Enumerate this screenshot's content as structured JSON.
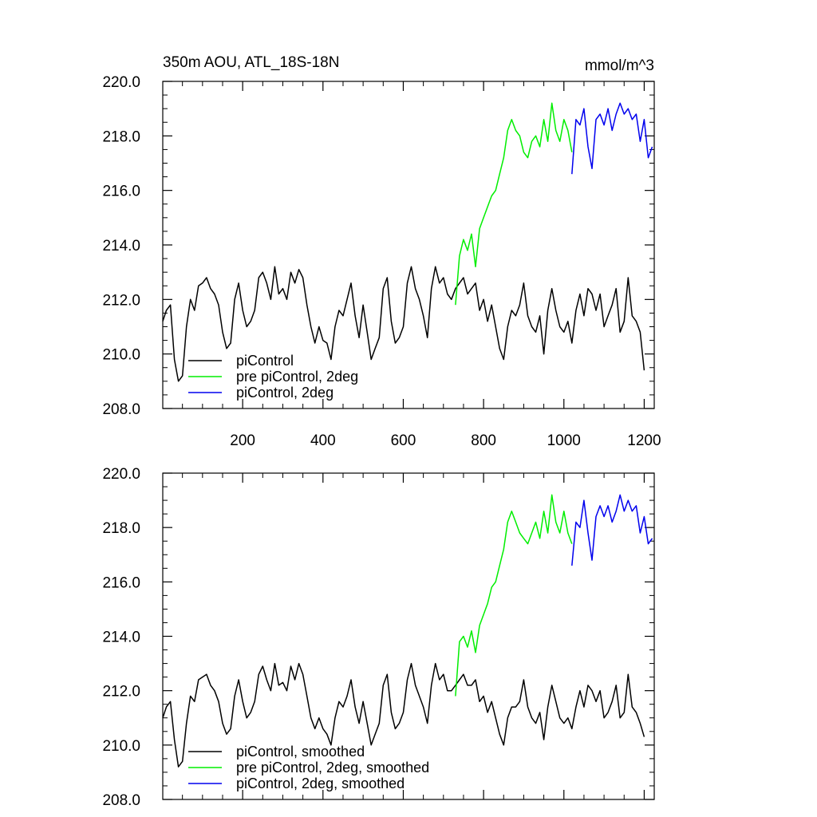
{
  "colors": {
    "black": "#000000",
    "green": "#00ee00",
    "blue": "#0000ee"
  },
  "chart_data": [
    {
      "type": "line",
      "title": "350m AOU, ATL_18S-18N",
      "units": "mmol/m^3",
      "xlim": [
        1,
        1225
      ],
      "ylim": [
        208,
        220
      ],
      "x_ticks": [
        200,
        400,
        600,
        800,
        1000,
        1200
      ],
      "x_tick_labels": [
        "200",
        "400",
        "600",
        "800",
        "1000",
        "1200"
      ],
      "y_ticks": [
        208,
        210,
        212,
        214,
        216,
        218,
        220
      ],
      "y_tick_labels": [
        "208.0",
        "210.0",
        "212.0",
        "214.0",
        "216.0",
        "218.0",
        "220.0"
      ],
      "legend": "bottom-left",
      "series": [
        {
          "name": "piControl",
          "color": "#000000",
          "x": [
            1,
            10,
            20,
            30,
            40,
            50,
            60,
            70,
            80,
            90,
            100,
            110,
            120,
            130,
            140,
            150,
            160,
            170,
            180,
            190,
            200,
            210,
            220,
            230,
            240,
            250,
            260,
            270,
            280,
            290,
            300,
            310,
            320,
            330,
            340,
            350,
            360,
            370,
            380,
            390,
            400,
            410,
            420,
            430,
            440,
            450,
            460,
            470,
            480,
            490,
            500,
            510,
            520,
            530,
            540,
            550,
            560,
            570,
            580,
            590,
            600,
            610,
            620,
            630,
            640,
            650,
            660,
            670,
            680,
            690,
            700,
            710,
            720,
            730,
            740,
            750,
            760,
            770,
            780,
            790,
            800,
            810,
            820,
            830,
            840,
            850,
            860,
            870,
            880,
            890,
            900,
            910,
            920,
            930,
            940,
            950,
            960,
            970,
            980,
            990,
            1000,
            1010,
            1020,
            1030,
            1040,
            1050,
            1060,
            1070,
            1080,
            1090,
            1100,
            1110,
            1120,
            1130,
            1140,
            1150,
            1160,
            1170,
            1180,
            1190,
            1200
          ],
          "values": [
            211.2,
            211.6,
            211.8,
            209.8,
            209.0,
            209.2,
            211.0,
            212.0,
            211.6,
            212.5,
            212.6,
            212.8,
            212.4,
            212.2,
            211.8,
            210.8,
            210.2,
            210.4,
            212.0,
            212.6,
            211.6,
            211.0,
            211.2,
            211.6,
            212.8,
            213.0,
            212.6,
            212.0,
            213.2,
            212.2,
            212.4,
            212.0,
            213.0,
            212.6,
            213.1,
            212.8,
            211.8,
            211.0,
            210.4,
            211.0,
            210.5,
            210.4,
            209.8,
            211.0,
            211.6,
            211.4,
            212.0,
            212.6,
            211.4,
            210.6,
            211.8,
            210.8,
            209.8,
            210.2,
            210.6,
            212.4,
            212.8,
            211.2,
            210.4,
            210.6,
            211.0,
            212.6,
            213.2,
            212.4,
            212.0,
            211.4,
            210.6,
            212.4,
            213.2,
            212.6,
            212.8,
            212.2,
            212.0,
            212.4,
            212.6,
            212.8,
            212.2,
            212.4,
            212.6,
            211.6,
            212.0,
            211.2,
            211.8,
            211.0,
            210.2,
            209.8,
            211.0,
            211.6,
            211.4,
            211.8,
            212.6,
            211.4,
            211.0,
            210.8,
            211.4,
            210.0,
            211.6,
            212.4,
            211.6,
            211.0,
            210.8,
            211.2,
            210.4,
            211.6,
            212.2,
            211.4,
            212.4,
            212.2,
            211.6,
            212.2,
            211.0,
            211.4,
            211.8,
            212.4,
            210.8,
            211.2,
            212.8,
            211.4,
            211.2,
            210.8,
            209.4
          ]
        },
        {
          "name": "pre piControl, 2deg",
          "color": "#00ee00",
          "x": [
            730,
            740,
            750,
            760,
            770,
            780,
            790,
            800,
            810,
            820,
            830,
            840,
            850,
            860,
            870,
            880,
            890,
            900,
            910,
            920,
            930,
            940,
            950,
            960,
            970,
            980,
            990,
            1000,
            1010,
            1020
          ],
          "values": [
            211.8,
            213.6,
            214.2,
            213.8,
            214.4,
            213.2,
            214.6,
            215.0,
            215.4,
            215.8,
            216.0,
            216.6,
            217.2,
            218.2,
            218.6,
            218.2,
            218.0,
            217.4,
            217.2,
            217.8,
            218.0,
            217.6,
            218.6,
            217.8,
            219.2,
            218.2,
            217.8,
            218.6,
            218.2,
            217.4
          ]
        },
        {
          "name": "piControl, 2deg",
          "color": "#0000ee",
          "x": [
            1020,
            1030,
            1040,
            1050,
            1060,
            1070,
            1080,
            1090,
            1100,
            1110,
            1120,
            1130,
            1140,
            1150,
            1160,
            1170,
            1180,
            1190,
            1200,
            1210,
            1220
          ],
          "values": [
            216.6,
            218.6,
            218.4,
            219.0,
            217.6,
            216.8,
            218.6,
            218.8,
            218.4,
            219.0,
            218.2,
            218.8,
            219.2,
            218.8,
            219.0,
            218.6,
            218.8,
            217.8,
            218.6,
            217.2,
            217.6
          ]
        }
      ]
    },
    {
      "type": "line",
      "xlim": [
        1,
        1225
      ],
      "ylim": [
        208,
        220
      ],
      "x_ticks": [
        200,
        400,
        600,
        800,
        1000,
        1200
      ],
      "y_ticks": [
        208,
        210,
        212,
        214,
        216,
        218,
        220
      ],
      "y_tick_labels": [
        "208.0",
        "210.0",
        "212.0",
        "214.0",
        "216.0",
        "218.0",
        "220.0"
      ],
      "legend": "bottom-left",
      "series": [
        {
          "name": "piControl, smoothed",
          "color": "#000000",
          "x": [
            1,
            10,
            20,
            30,
            40,
            50,
            60,
            70,
            80,
            90,
            100,
            110,
            120,
            130,
            140,
            150,
            160,
            170,
            180,
            190,
            200,
            210,
            220,
            230,
            240,
            250,
            260,
            270,
            280,
            290,
            300,
            310,
            320,
            330,
            340,
            350,
            360,
            370,
            380,
            390,
            400,
            410,
            420,
            430,
            440,
            450,
            460,
            470,
            480,
            490,
            500,
            510,
            520,
            530,
            540,
            550,
            560,
            570,
            580,
            590,
            600,
            610,
            620,
            630,
            640,
            650,
            660,
            670,
            680,
            690,
            700,
            710,
            720,
            730,
            740,
            750,
            760,
            770,
            780,
            790,
            800,
            810,
            820,
            830,
            840,
            850,
            860,
            870,
            880,
            890,
            900,
            910,
            920,
            930,
            940,
            950,
            960,
            970,
            980,
            990,
            1000,
            1010,
            1020,
            1030,
            1040,
            1050,
            1060,
            1070,
            1080,
            1090,
            1100,
            1110,
            1120,
            1130,
            1140,
            1150,
            1160,
            1170,
            1180,
            1190,
            1200
          ],
          "values": [
            211.0,
            211.4,
            211.6,
            210.2,
            209.2,
            209.4,
            210.8,
            211.8,
            211.6,
            212.4,
            212.5,
            212.6,
            212.2,
            212.0,
            211.6,
            210.8,
            210.4,
            210.6,
            211.8,
            212.4,
            211.6,
            211.0,
            211.2,
            211.6,
            212.6,
            212.9,
            212.4,
            212.0,
            213.0,
            212.2,
            212.3,
            212.0,
            212.9,
            212.4,
            213.0,
            212.6,
            211.8,
            211.0,
            210.6,
            211.0,
            210.6,
            210.4,
            210.0,
            211.0,
            211.6,
            211.4,
            211.8,
            212.4,
            211.4,
            210.8,
            211.6,
            210.8,
            210.0,
            210.4,
            210.8,
            212.2,
            212.6,
            211.2,
            210.6,
            210.8,
            211.2,
            212.4,
            213.0,
            212.2,
            211.8,
            211.4,
            210.8,
            212.2,
            213.0,
            212.4,
            212.6,
            212.0,
            212.0,
            212.2,
            212.4,
            212.6,
            212.2,
            212.2,
            212.4,
            211.6,
            211.8,
            211.2,
            211.6,
            211.0,
            210.4,
            210.0,
            211.0,
            211.4,
            211.4,
            211.6,
            212.4,
            211.4,
            211.0,
            210.8,
            211.2,
            210.2,
            211.4,
            212.2,
            211.6,
            211.0,
            210.8,
            211.0,
            210.6,
            211.4,
            212.0,
            211.4,
            212.2,
            212.0,
            211.6,
            212.0,
            211.0,
            211.2,
            211.6,
            212.2,
            211.0,
            211.2,
            212.6,
            211.4,
            211.2,
            210.8,
            210.3
          ]
        },
        {
          "name": "pre piControl, 2deg, smoothed",
          "color": "#00ee00",
          "x": [
            730,
            740,
            750,
            760,
            770,
            780,
            790,
            800,
            810,
            820,
            830,
            840,
            850,
            860,
            870,
            880,
            890,
            900,
            910,
            920,
            930,
            940,
            950,
            960,
            970,
            980,
            990,
            1000,
            1010,
            1020
          ],
          "values": [
            211.8,
            213.8,
            214.0,
            213.6,
            214.2,
            213.4,
            214.4,
            214.8,
            215.2,
            215.8,
            216.0,
            216.6,
            217.2,
            218.2,
            218.6,
            218.2,
            217.8,
            217.6,
            217.4,
            217.8,
            218.2,
            217.6,
            218.6,
            217.8,
            219.2,
            218.2,
            217.8,
            218.6,
            217.8,
            217.4
          ]
        },
        {
          "name": "piControl, 2deg, smoothed",
          "color": "#0000ee",
          "x": [
            1020,
            1030,
            1040,
            1050,
            1060,
            1070,
            1080,
            1090,
            1100,
            1110,
            1120,
            1130,
            1140,
            1150,
            1160,
            1170,
            1180,
            1190,
            1200,
            1210,
            1220
          ],
          "values": [
            216.6,
            218.2,
            218.0,
            219.0,
            217.8,
            216.8,
            218.4,
            218.8,
            218.4,
            218.8,
            218.2,
            218.6,
            219.2,
            218.6,
            219.0,
            218.6,
            218.8,
            217.8,
            218.4,
            217.4,
            217.6
          ]
        }
      ]
    }
  ]
}
